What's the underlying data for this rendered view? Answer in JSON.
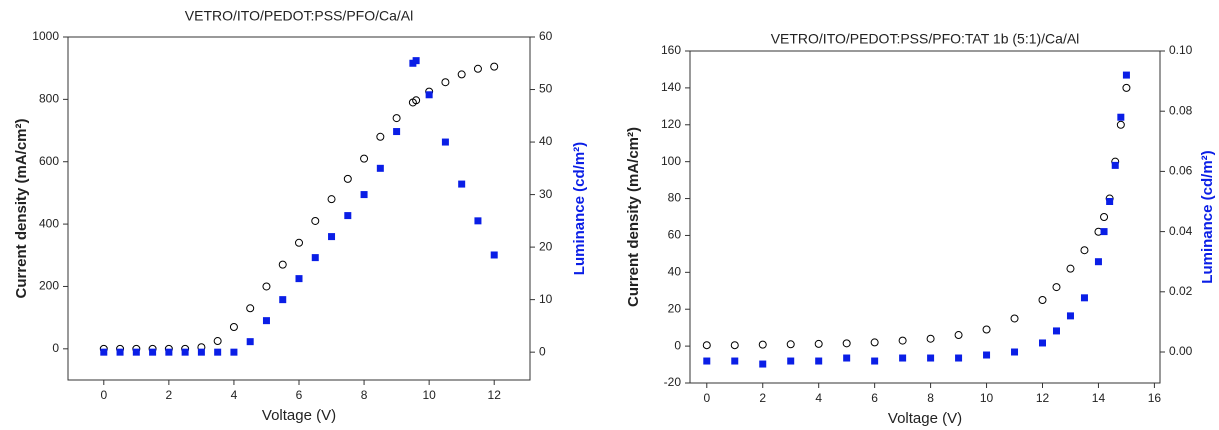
{
  "chart_data": [
    {
      "type": "scatter",
      "title": "VETRO/ITO/PEDOT:PSS/PFO/Ca/Al",
      "x_label": "Voltage (V)",
      "y_label": "Current density (mA/cm²)",
      "y2_label": "Luminance (cd/m²)",
      "x": [
        0,
        0.5,
        1,
        1.5,
        2,
        2.5,
        3,
        3.5,
        4,
        4.5,
        5,
        5.5,
        6,
        6.5,
        7,
        7.5,
        8,
        8.5,
        9,
        9.5,
        9.6,
        10,
        10.5,
        11,
        11.5,
        12
      ],
      "series": [
        {
          "name": "Current density",
          "color": "#000000",
          "marker": "open-circle",
          "values": [
            0,
            0,
            0,
            0,
            0,
            0,
            5,
            25,
            70,
            130,
            200,
            270,
            340,
            410,
            480,
            545,
            610,
            680,
            740,
            790,
            797,
            825,
            855,
            880,
            898,
            905
          ]
        },
        {
          "name": "Luminance",
          "color": "#0a1ee6",
          "marker": "square",
          "axis": "y2",
          "values": [
            0,
            0,
            0,
            0,
            0,
            0,
            0,
            0,
            0,
            2,
            6,
            10,
            14,
            18,
            22,
            26,
            30,
            35,
            42,
            55,
            55.5,
            49,
            40,
            32,
            25,
            18.5
          ]
        }
      ],
      "xlim": [
        -1.1,
        13.1
      ],
      "xticks": [
        0,
        2,
        4,
        6,
        8,
        10,
        12
      ],
      "ylim": [
        -100,
        1000
      ],
      "yticks": [
        0,
        200,
        400,
        600,
        800,
        1000
      ],
      "y2lim": [
        -5.3,
        60
      ],
      "y2ticks": [
        0,
        10,
        20,
        30,
        40,
        50,
        60
      ]
    },
    {
      "type": "scatter",
      "title": "VETRO/ITO/PEDOT:PSS/PFO:TAT 1b (5:1)/Ca/Al",
      "x_label": "Voltage (V)",
      "y_label": "Current density (mA/cm²)",
      "y2_label": "Luminance (cd/m²)",
      "x": [
        0,
        1,
        2,
        3,
        4,
        5,
        6,
        7,
        8,
        9,
        10,
        11,
        12,
        12.5,
        13,
        13.5,
        14,
        14.2,
        14.4,
        14.6,
        14.8,
        15
      ],
      "series": [
        {
          "name": "Current density",
          "color": "#000000",
          "marker": "open-circle",
          "values": [
            0.5,
            0.5,
            0.8,
            1,
            1.2,
            1.5,
            2,
            3,
            4,
            6,
            9,
            15,
            25,
            32,
            42,
            52,
            62,
            70,
            80,
            100,
            120,
            140
          ]
        },
        {
          "name": "Luminance",
          "color": "#0a1ee6",
          "marker": "square",
          "axis": "y2",
          "values": [
            -0.003,
            -0.003,
            -0.004,
            -0.003,
            -0.003,
            -0.002,
            -0.003,
            -0.002,
            -0.002,
            -0.002,
            -0.001,
            0,
            0.003,
            0.007,
            0.012,
            0.018,
            0.03,
            0.04,
            0.05,
            0.062,
            0.078,
            0.092
          ]
        }
      ],
      "xlim": [
        -0.6,
        16.2
      ],
      "xticks": [
        0,
        2,
        4,
        6,
        8,
        10,
        12,
        14,
        16
      ],
      "ylim": [
        -20,
        160
      ],
      "yticks": [
        -20,
        0,
        20,
        40,
        60,
        80,
        100,
        120,
        140,
        160
      ],
      "y2lim": [
        -0.0103,
        0.1
      ],
      "y2ticks": [
        {
          "value": 0,
          "label": "0.00"
        },
        0.02,
        0.04,
        0.06,
        0.08,
        {
          "value": 0.1,
          "label": "0.10"
        }
      ]
    }
  ]
}
